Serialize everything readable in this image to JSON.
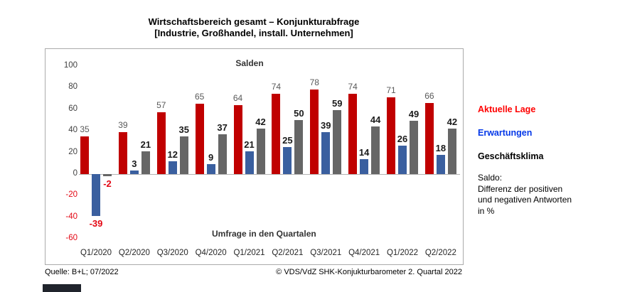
{
  "title": {
    "line1": "Wirtschaftsbereich gesamt – Konjunkturabfrage",
    "line2": "[Industrie, Großhandel, install. Unternehmen]"
  },
  "chart_data": {
    "type": "bar",
    "title": "Salden",
    "xlabel": "Umfrage in den Quartalen",
    "categories": [
      "Q1/2020",
      "Q2/2020",
      "Q3/2020",
      "Q4/2020",
      "Q1/2021",
      "Q2/2021",
      "Q3/2021",
      "Q4/2021",
      "Q1/2022",
      "Q2/2022"
    ],
    "series": [
      {
        "name": "Aktuelle Lage",
        "color": "#C00000",
        "values": [
          35,
          39,
          57,
          65,
          64,
          74,
          78,
          74,
          71,
          66
        ]
      },
      {
        "name": "Erwartungen",
        "color": "#3A5F9F",
        "values": [
          -39,
          3,
          12,
          9,
          21,
          25,
          39,
          14,
          26,
          18
        ]
      },
      {
        "name": "Geschäftsklima",
        "color": "#666666",
        "values": [
          -2,
          21,
          35,
          37,
          42,
          50,
          59,
          44,
          49,
          42
        ]
      }
    ],
    "ylim": [
      -60,
      100
    ],
    "ytick_step": 20,
    "grid": false,
    "legend_position": "right"
  },
  "legend": {
    "items": [
      {
        "label": "Aktuelle Lage",
        "color": "#FF0000"
      },
      {
        "label": "Erwartungen",
        "color": "#0438E8"
      },
      {
        "label": "Geschäftsklima",
        "color": "#000000"
      }
    ],
    "note_lines": [
      "Saldo:",
      "Differenz der positiven",
      "und negativen Antworten",
      "in %"
    ]
  },
  "footer": {
    "source": "Quelle: B+L; 07/2022",
    "copyright": "© VDS/VdZ SHK-Konjukturbarometer 2. Quartal 2022"
  },
  "colors": {
    "bar_red": "#C00000",
    "bar_blue": "#3A5F9F",
    "bar_gray": "#666666",
    "negative_red": "#E30613",
    "axis_line": "#B3B3B3",
    "strip_dark": "#20242C"
  }
}
